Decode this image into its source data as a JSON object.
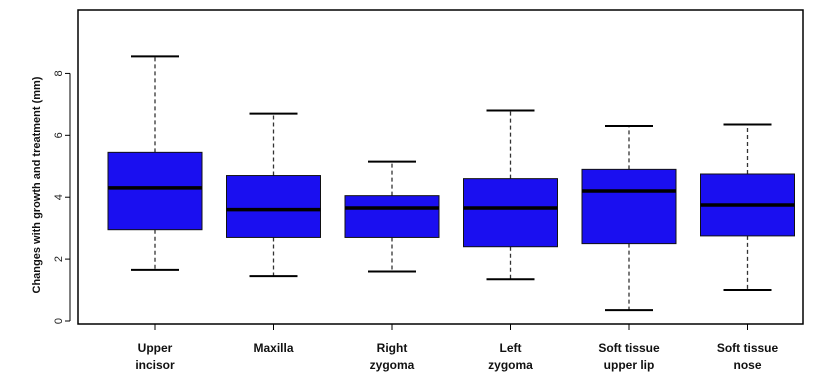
{
  "chart_data": {
    "type": "boxplot",
    "title": "",
    "xlabel": "",
    "ylabel": "Changes with growth and treatment (mm)",
    "ylim": [
      0,
      9.5
    ],
    "yticks": [
      0,
      2,
      4,
      6,
      8
    ],
    "grid": false,
    "legend": "none",
    "colors": {
      "box_fill": "#1a0ff0",
      "median": "#000000",
      "whisker": "#333333"
    },
    "categories": [
      {
        "lines": [
          "Upper",
          "incisor"
        ],
        "min": 1.65,
        "q1": 2.95,
        "median": 4.3,
        "q3": 5.45,
        "max": 8.55
      },
      {
        "lines": [
          "Maxilla"
        ],
        "min": 1.45,
        "q1": 2.7,
        "median": 3.6,
        "q3": 4.7,
        "max": 6.7
      },
      {
        "lines": [
          "Right",
          "zygoma"
        ],
        "min": 1.6,
        "q1": 2.7,
        "median": 3.65,
        "q3": 4.05,
        "max": 5.15
      },
      {
        "lines": [
          "Left",
          "zygoma"
        ],
        "min": 1.35,
        "q1": 2.4,
        "median": 3.65,
        "q3": 4.6,
        "max": 6.8
      },
      {
        "lines": [
          "Soft tissue",
          "upper lip"
        ],
        "min": 0.35,
        "q1": 2.5,
        "median": 4.2,
        "q3": 4.9,
        "max": 6.3
      },
      {
        "lines": [
          "Soft tissue",
          "nose"
        ],
        "min": 1.0,
        "q1": 2.75,
        "median": 3.75,
        "q3": 4.75,
        "max": 6.35
      }
    ]
  }
}
